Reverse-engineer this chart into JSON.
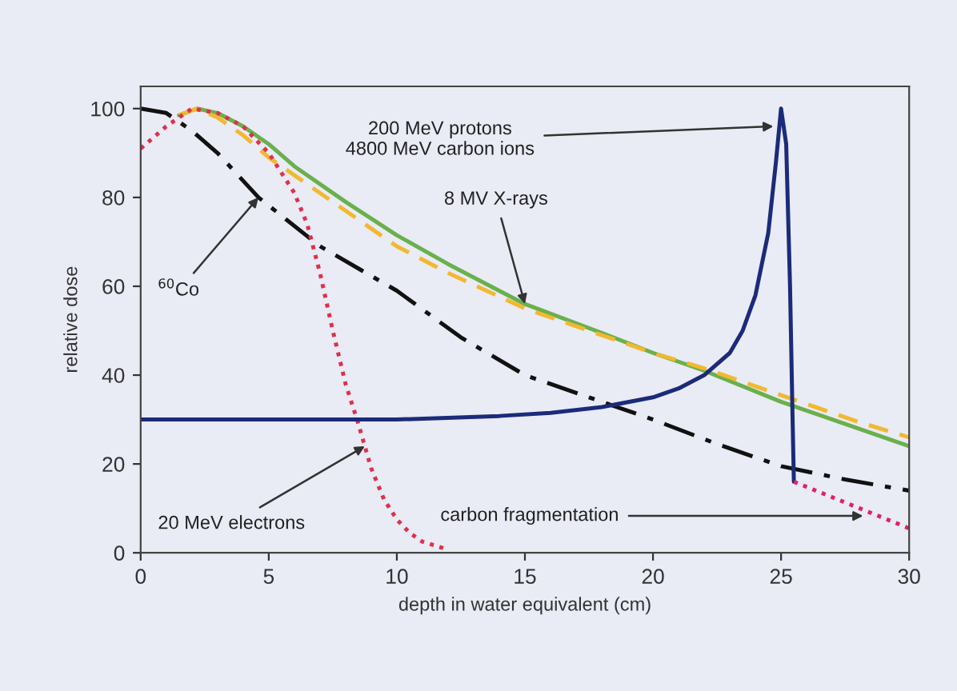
{
  "chart_data": {
    "type": "line",
    "xlabel": "depth in water equivalent (cm)",
    "ylabel": "relative dose",
    "xlim": [
      0,
      30
    ],
    "xticks": [
      0,
      5,
      10,
      15,
      20,
      25,
      30
    ],
    "ylim": [
      0,
      105
    ],
    "yticks": [
      0,
      20,
      40,
      60,
      80,
      100
    ],
    "grid": false,
    "marker": "none",
    "series": [
      {
        "color": "#6ab04c",
        "line_style": "solid",
        "x": [
          1.5,
          2.2,
          3,
          4,
          5,
          6,
          8,
          10,
          12,
          15,
          18,
          20,
          22,
          25,
          28,
          30
        ],
        "values": [
          98.5,
          100,
          99,
          96,
          92,
          87,
          79,
          71.5,
          65,
          56,
          49.5,
          45,
          41,
          34,
          28,
          24
        ]
      },
      {
        "color": "#f2b830",
        "line_style": "dashed",
        "x": [
          1.5,
          2.2,
          3,
          4,
          5,
          6,
          8,
          10,
          12,
          15,
          18,
          20,
          22,
          25,
          28,
          30
        ],
        "values": [
          98.5,
          100,
          98,
          94,
          89,
          85,
          77,
          69,
          63,
          55,
          49,
          45,
          41.5,
          35.5,
          29.5,
          26
        ]
      },
      {
        "color": "#111111",
        "line_style": "dashdot",
        "x": [
          0,
          1,
          2,
          3,
          4.6,
          7,
          10,
          12.5,
          15,
          17.5,
          20,
          22.5,
          25,
          27.5,
          30
        ],
        "values": [
          100,
          99,
          95,
          90,
          80,
          69,
          59,
          48.5,
          40,
          35,
          30,
          24.5,
          19.5,
          16.5,
          14
        ]
      },
      {
        "color": "#e0304a",
        "line_style": "dotted",
        "x": [
          0,
          1,
          2,
          3,
          4,
          5,
          6,
          6.5,
          7,
          7.5,
          8,
          8.5,
          8.75,
          9,
          9.5,
          10,
          10.5,
          11,
          12
        ],
        "values": [
          91,
          96,
          100,
          99,
          96,
          90,
          81,
          74,
          63,
          50,
          38,
          29,
          24,
          19,
          12,
          7.5,
          4.5,
          2.5,
          0.7
        ]
      },
      {
        "color": "#1c2a7a",
        "line_style": "solid",
        "x": [
          0,
          5,
          10,
          14,
          16,
          18,
          20,
          21,
          22,
          23,
          23.5,
          24,
          24.5,
          24.8,
          25,
          25.2,
          25.35,
          25.45,
          25.5
        ],
        "values": [
          30,
          30,
          30,
          30.8,
          31.5,
          32.8,
          35,
          37,
          40,
          45,
          50,
          58,
          72,
          88,
          100,
          92,
          60,
          30,
          16
        ]
      },
      {
        "color": "#e0206a",
        "line_style": "dotted",
        "x": [
          25.5,
          27,
          28.5,
          30
        ],
        "values": [
          16,
          12.5,
          9,
          5.5
        ]
      }
    ],
    "annotations": [
      {
        "text": "200 MeV protons\n4800 MeV carbon ions",
        "x": 24.7,
        "y": 96
      },
      {
        "text": "8 MV X-rays",
        "x": 15,
        "y": 56
      },
      {
        "text": "$^{60}$Co",
        "x": 4.6,
        "y": 80
      },
      {
        "text": "20 MeV electrons",
        "x": 8.75,
        "y": 24
      },
      {
        "text": "carbon fragmentation",
        "x": 28.2,
        "y": 8.3
      }
    ]
  }
}
